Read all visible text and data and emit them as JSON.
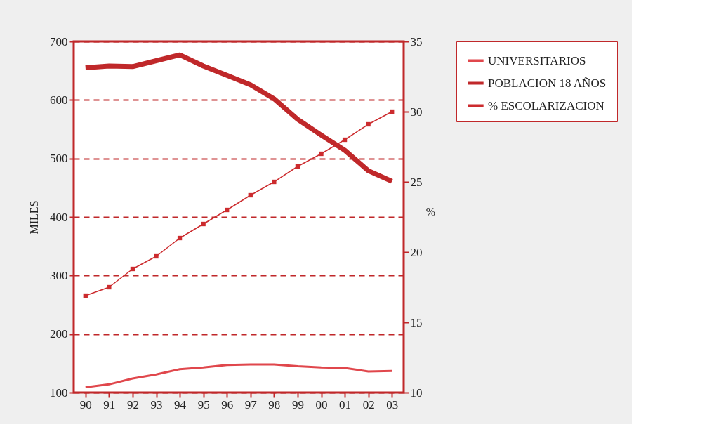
{
  "chart_data": {
    "type": "line",
    "ylabel": "MILES",
    "y2label": "%",
    "categories": [
      "90",
      "91",
      "92",
      "93",
      "94",
      "95",
      "96",
      "97",
      "98",
      "99",
      "00",
      "01",
      "02",
      "03"
    ],
    "series": [
      {
        "name": "UNIVERSITARIOS",
        "color": "#e0474c",
        "values": [
          109,
          114,
          124,
          131,
          140,
          143,
          147,
          148,
          148,
          145,
          143,
          142,
          136,
          137
        ]
      },
      {
        "name": "POBLACION 18 AÑOS",
        "color": "#c0282a",
        "values": [
          655,
          658,
          657,
          667,
          677,
          658,
          642,
          626,
          602,
          567,
          540,
          514,
          479,
          461
        ]
      },
      {
        "name": "% ESCOLARIZACION",
        "color": "#cc2b2e",
        "axis": "y2",
        "marker": "square",
        "values": [
          16.9,
          17.5,
          18.8,
          19.7,
          21.0,
          22.0,
          23.0,
          24.05,
          25.0,
          26.1,
          27.0,
          28.0,
          29.1,
          30.0
        ]
      }
    ],
    "ylim": [
      100,
      700
    ],
    "yticks": [
      100,
      200,
      300,
      400,
      500,
      600,
      700
    ],
    "y2lim": [
      10,
      35
    ],
    "y2ticks": [
      10,
      15,
      20,
      25,
      30,
      35
    ],
    "grid": "y",
    "legend": "right",
    "line_style": "solid"
  }
}
